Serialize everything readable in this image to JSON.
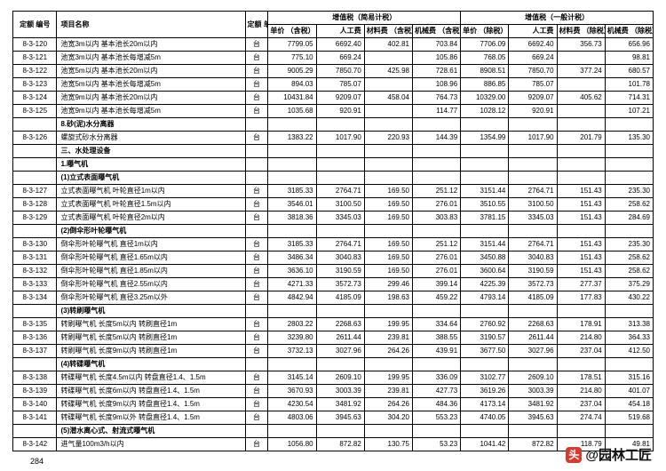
{
  "header": {
    "code": "定额\n编号",
    "name": "项目名称",
    "unit": "定额\n单位",
    "group1": "增值税（简易计税）",
    "group2": "增值税（一般计税）",
    "g1": {
      "c1": "单价\n（含税）",
      "c2": "人工费",
      "c3": "材料费\n（含税）",
      "c4": "机械费\n（含税）"
    },
    "g2": {
      "c1": "单价\n（除税）",
      "c2": "人工费",
      "c3": "材料费\n（除税）",
      "c4": "机械费\n（除税）"
    }
  },
  "rows": [
    {
      "t": "d",
      "code": "8-3-120",
      "name": "池宽3m以内 基本池长20m以内",
      "unit": "台",
      "v": [
        "7799.05",
        "6692.40",
        "402.81",
        "703.84",
        "7706.09",
        "6692.40",
        "356.73",
        "656.96"
      ]
    },
    {
      "t": "d",
      "code": "8-3-121",
      "name": "池宽3m以内 基本池长每增减5m",
      "unit": "台",
      "v": [
        "775.10",
        "669.24",
        "",
        "105.86",
        "768.05",
        "669.24",
        "",
        "98.81"
      ]
    },
    {
      "t": "d",
      "code": "8-3-122",
      "name": "池宽5m以内 基本池长20m以内",
      "unit": "台",
      "v": [
        "9005.29",
        "7850.70",
        "425.98",
        "728.61",
        "8908.51",
        "7850.70",
        "377.24",
        "680.57"
      ]
    },
    {
      "t": "d",
      "code": "8-3-123",
      "name": "池宽5m以内 基本池长每增减5m",
      "unit": "台",
      "v": [
        "894.03",
        "785.07",
        "",
        "108.96",
        "886.85",
        "785.07",
        "",
        "101.78"
      ]
    },
    {
      "t": "d",
      "code": "8-3-124",
      "name": "池宽9m以内 基本池长20m以内",
      "unit": "台",
      "v": [
        "10431.84",
        "9209.07",
        "458.04",
        "764.73",
        "10329.00",
        "9209.07",
        "405.62",
        "714.31"
      ]
    },
    {
      "t": "d",
      "code": "8-3-125",
      "name": "池宽9m以内 基本池长每增减5m",
      "unit": "台",
      "v": [
        "1035.68",
        "920.91",
        "",
        "114.77",
        "1028.12",
        "920.91",
        "",
        "107.21"
      ]
    },
    {
      "t": "s",
      "name": "8.砂(泥)水分离器"
    },
    {
      "t": "d",
      "code": "8-3-126",
      "name": "螺旋式砂水分离器",
      "unit": "台",
      "v": [
        "1383.22",
        "1017.90",
        "220.93",
        "144.39",
        "1354.99",
        "1017.90",
        "201.79",
        "135.30"
      ]
    },
    {
      "t": "s",
      "name": "三、水处理设备"
    },
    {
      "t": "s",
      "name": "1.曝气机"
    },
    {
      "t": "s",
      "name": "(1)立式表面曝气机"
    },
    {
      "t": "d",
      "code": "8-3-127",
      "name": "立式表面曝气机 叶轮直径1m以内",
      "unit": "台",
      "v": [
        "3185.33",
        "2764.71",
        "169.50",
        "251.12",
        "3151.44",
        "2764.71",
        "151.43",
        "235.30"
      ]
    },
    {
      "t": "d",
      "code": "8-3-128",
      "name": "立式表面曝气机 叶轮直径1.5m以内",
      "unit": "台",
      "v": [
        "3546.01",
        "3100.50",
        "169.50",
        "276.01",
        "3510.55",
        "3100.50",
        "151.43",
        "258.62"
      ]
    },
    {
      "t": "d",
      "code": "8-3-129",
      "name": "立式表面曝气机 叶轮直径2m以内",
      "unit": "台",
      "v": [
        "3818.36",
        "3345.03",
        "169.50",
        "303.83",
        "3781.15",
        "3345.03",
        "151.43",
        "284.69"
      ]
    },
    {
      "t": "s",
      "name": "(2)倒伞形叶轮曝气机"
    },
    {
      "t": "d",
      "code": "8-3-130",
      "name": "倒伞形叶轮曝气机 直径1m以内",
      "unit": "台",
      "v": [
        "3185.33",
        "2764.71",
        "169.50",
        "251.12",
        "3151.44",
        "2764.71",
        "151.43",
        "235.30"
      ]
    },
    {
      "t": "d",
      "code": "8-3-131",
      "name": "倒伞形叶轮曝气机 直径1.65m以内",
      "unit": "台",
      "v": [
        "3486.34",
        "3040.83",
        "169.50",
        "276.01",
        "3450.88",
        "3040.83",
        "151.43",
        "258.62"
      ]
    },
    {
      "t": "d",
      "code": "8-3-132",
      "name": "倒伞形叶轮曝气机 直径1.85m以内",
      "unit": "台",
      "v": [
        "3636.10",
        "3190.59",
        "169.50",
        "276.01",
        "3600.64",
        "3190.59",
        "151.43",
        "258.62"
      ]
    },
    {
      "t": "d",
      "code": "8-3-133",
      "name": "倒伞形叶轮曝气机 直径2.55m以内",
      "unit": "台",
      "v": [
        "4271.33",
        "3572.73",
        "299.46",
        "399.14",
        "4225.39",
        "3572.73",
        "277.37",
        "375.29"
      ]
    },
    {
      "t": "d",
      "code": "8-3-134",
      "name": "倒伞形叶轮曝气机 直径3.25m以外",
      "unit": "台",
      "v": [
        "4842.94",
        "4185.09",
        "198.63",
        "459.22",
        "4793.14",
        "4185.09",
        "177.83",
        "430.22"
      ]
    },
    {
      "t": "s",
      "name": "(3)转刷曝气机"
    },
    {
      "t": "d",
      "code": "8-3-135",
      "name": "转刷曝气机 长度5m以内 转刷直径1m",
      "unit": "台",
      "v": [
        "2803.22",
        "2268.63",
        "199.95",
        "334.64",
        "2760.92",
        "2268.63",
        "178.91",
        "313.38"
      ]
    },
    {
      "t": "d",
      "code": "8-3-136",
      "name": "转刷曝气机 长度5m以内 转刷直径1m",
      "unit": "台",
      "v": [
        "3239.80",
        "2611.44",
        "239.81",
        "388.55",
        "3190.57",
        "2611.44",
        "214.80",
        "364.33"
      ]
    },
    {
      "t": "d",
      "code": "8-3-137",
      "name": "转刷曝气机 长度9m以内 转刷直径1m",
      "unit": "台",
      "v": [
        "3732.13",
        "3027.96",
        "264.26",
        "439.91",
        "3677.50",
        "3027.96",
        "237.04",
        "412.50"
      ]
    },
    {
      "t": "s",
      "name": "(4)转碟曝气机"
    },
    {
      "t": "d",
      "code": "8-3-138",
      "name": "转碟曝气机 长度4.5m以内 转盘直径1.4、1.5m",
      "unit": "台",
      "v": [
        "3145.14",
        "2609.10",
        "199.95",
        "336.09",
        "3102.77",
        "2609.10",
        "178.51",
        "315.16"
      ]
    },
    {
      "t": "d",
      "code": "8-3-139",
      "name": "转碟曝气机 长度6m以内 转盘直径1.4、1.5m",
      "unit": "台",
      "v": [
        "3670.93",
        "3003.39",
        "239.81",
        "427.73",
        "3619.26",
        "3003.39",
        "214.80",
        "401.07"
      ]
    },
    {
      "t": "d",
      "code": "8-3-140",
      "name": "转碟曝气机 长度9m以内 转盘直径1.4、1.5m",
      "unit": "台",
      "v": [
        "4230.54",
        "3481.92",
        "264.26",
        "484.36",
        "4173.14",
        "3481.92",
        "237.04",
        "454.18"
      ]
    },
    {
      "t": "d",
      "code": "8-3-141",
      "name": "转碟曝气机 长度9m以外 转盘直径1.4、1.5m",
      "unit": "台",
      "v": [
        "4803.06",
        "3945.63",
        "304.20",
        "553.23",
        "4740.05",
        "3945.63",
        "274.74",
        "519.68"
      ]
    },
    {
      "t": "s",
      "name": "(5)潜水离心式、射流式曝气机"
    },
    {
      "t": "d",
      "code": "8-3-142",
      "name": "进气量100m3/h以内",
      "unit": "台",
      "v": [
        "1056.80",
        "872.82",
        "130.75",
        "53.23",
        "1041.42",
        "872.82",
        "118.79",
        "49.81"
      ]
    }
  ],
  "pageNumber": "284",
  "watermark": {
    "icon": "头",
    "text": "@园林工匠"
  }
}
